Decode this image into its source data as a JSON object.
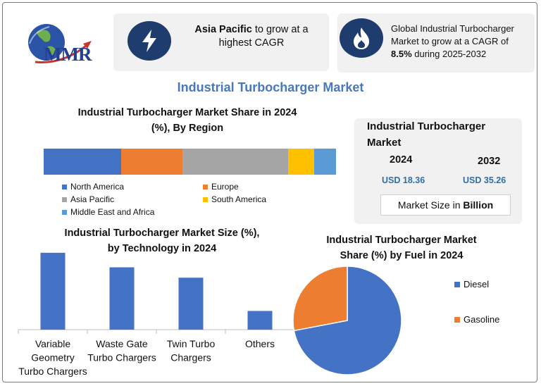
{
  "header": {
    "logo_text": "MMR",
    "cagr_card": {
      "bold": "Asia Pacific",
      "rest": " to grow at a",
      "line2": "highest CAGR"
    },
    "global_card": {
      "line1": "Global Industrial Turbocharger",
      "line2": "Market to grow at a CAGR of",
      "bold": "8.5%",
      "rest": " during 2025-2032"
    }
  },
  "main_title": "Industrial Turbocharger Market",
  "region_chart": {
    "title_line1": "Industrial Turbocharger Market Share in 2024",
    "title_line2": "(%), By Region",
    "legend": [
      {
        "label": "North America",
        "color": "#4472c4"
      },
      {
        "label": "Europe",
        "color": "#ed7d31"
      },
      {
        "label": "Asia Pacific",
        "color": "#a5a5a5"
      },
      {
        "label": "South America",
        "color": "#ffc000"
      },
      {
        "label": "Middle East and Africa",
        "color": "#5b9bd5"
      }
    ]
  },
  "market_size": {
    "title_line1": "Industrial Turbocharger",
    "title_line2": "Market",
    "year1": "2024",
    "year2": "2032",
    "value1": "USD 18.36",
    "value2": "USD 35.26",
    "unit_prefix": "Market Size in ",
    "unit_bold": "Billion"
  },
  "tech_chart": {
    "title_line1": "Industrial Turbocharger Market Size (%),",
    "title_line2": "by Technology in 2024",
    "categories_display": [
      [
        "Variable",
        "Geometry",
        "Turbo Chargers"
      ],
      [
        "Waste Gate",
        "Turbo Chargers"
      ],
      [
        "Twin Turbo",
        "Chargers"
      ],
      [
        "Others"
      ]
    ]
  },
  "fuel_chart": {
    "title_line1": "Industrial Turbocharger Market",
    "title_line2": "Share (%) by Fuel in 2024"
  },
  "colors": {
    "blue": "#4472c4",
    "orange": "#ed7d31",
    "navy": "#1f3c6e",
    "title_blue": "#4a78b8"
  },
  "chart_data": [
    {
      "type": "bar",
      "stacked": true,
      "orientation": "horizontal",
      "title": "Industrial Turbocharger Market Share in 2024 (%), By Region",
      "categories": [
        "2024"
      ],
      "series": [
        {
          "name": "North America",
          "values": [
            26.5
          ]
        },
        {
          "name": "Europe",
          "values": [
            21
          ]
        },
        {
          "name": "Asia Pacific",
          "values": [
            36
          ]
        },
        {
          "name": "South America",
          "values": [
            9
          ]
        },
        {
          "name": "Middle East and Africa",
          "values": [
            7.5
          ]
        }
      ],
      "legend": "bottom"
    },
    {
      "type": "bar",
      "title": "Industrial Turbocharger Market Size (%), by Technology in 2024",
      "categories": [
        "Variable Geometry Turbo Chargers",
        "Waste Gate Turbo Chargers",
        "Twin Turbo Chargers",
        "Others"
      ],
      "values": [
        37,
        30,
        25,
        9
      ],
      "ylim": [
        0,
        40
      ],
      "grid": false
    },
    {
      "type": "pie",
      "title": "Industrial Turbocharger Market Share (%) by Fuel in 2024",
      "categories": [
        "Diesel",
        "Gasoline"
      ],
      "values": [
        72,
        28
      ],
      "legend": "right"
    }
  ]
}
